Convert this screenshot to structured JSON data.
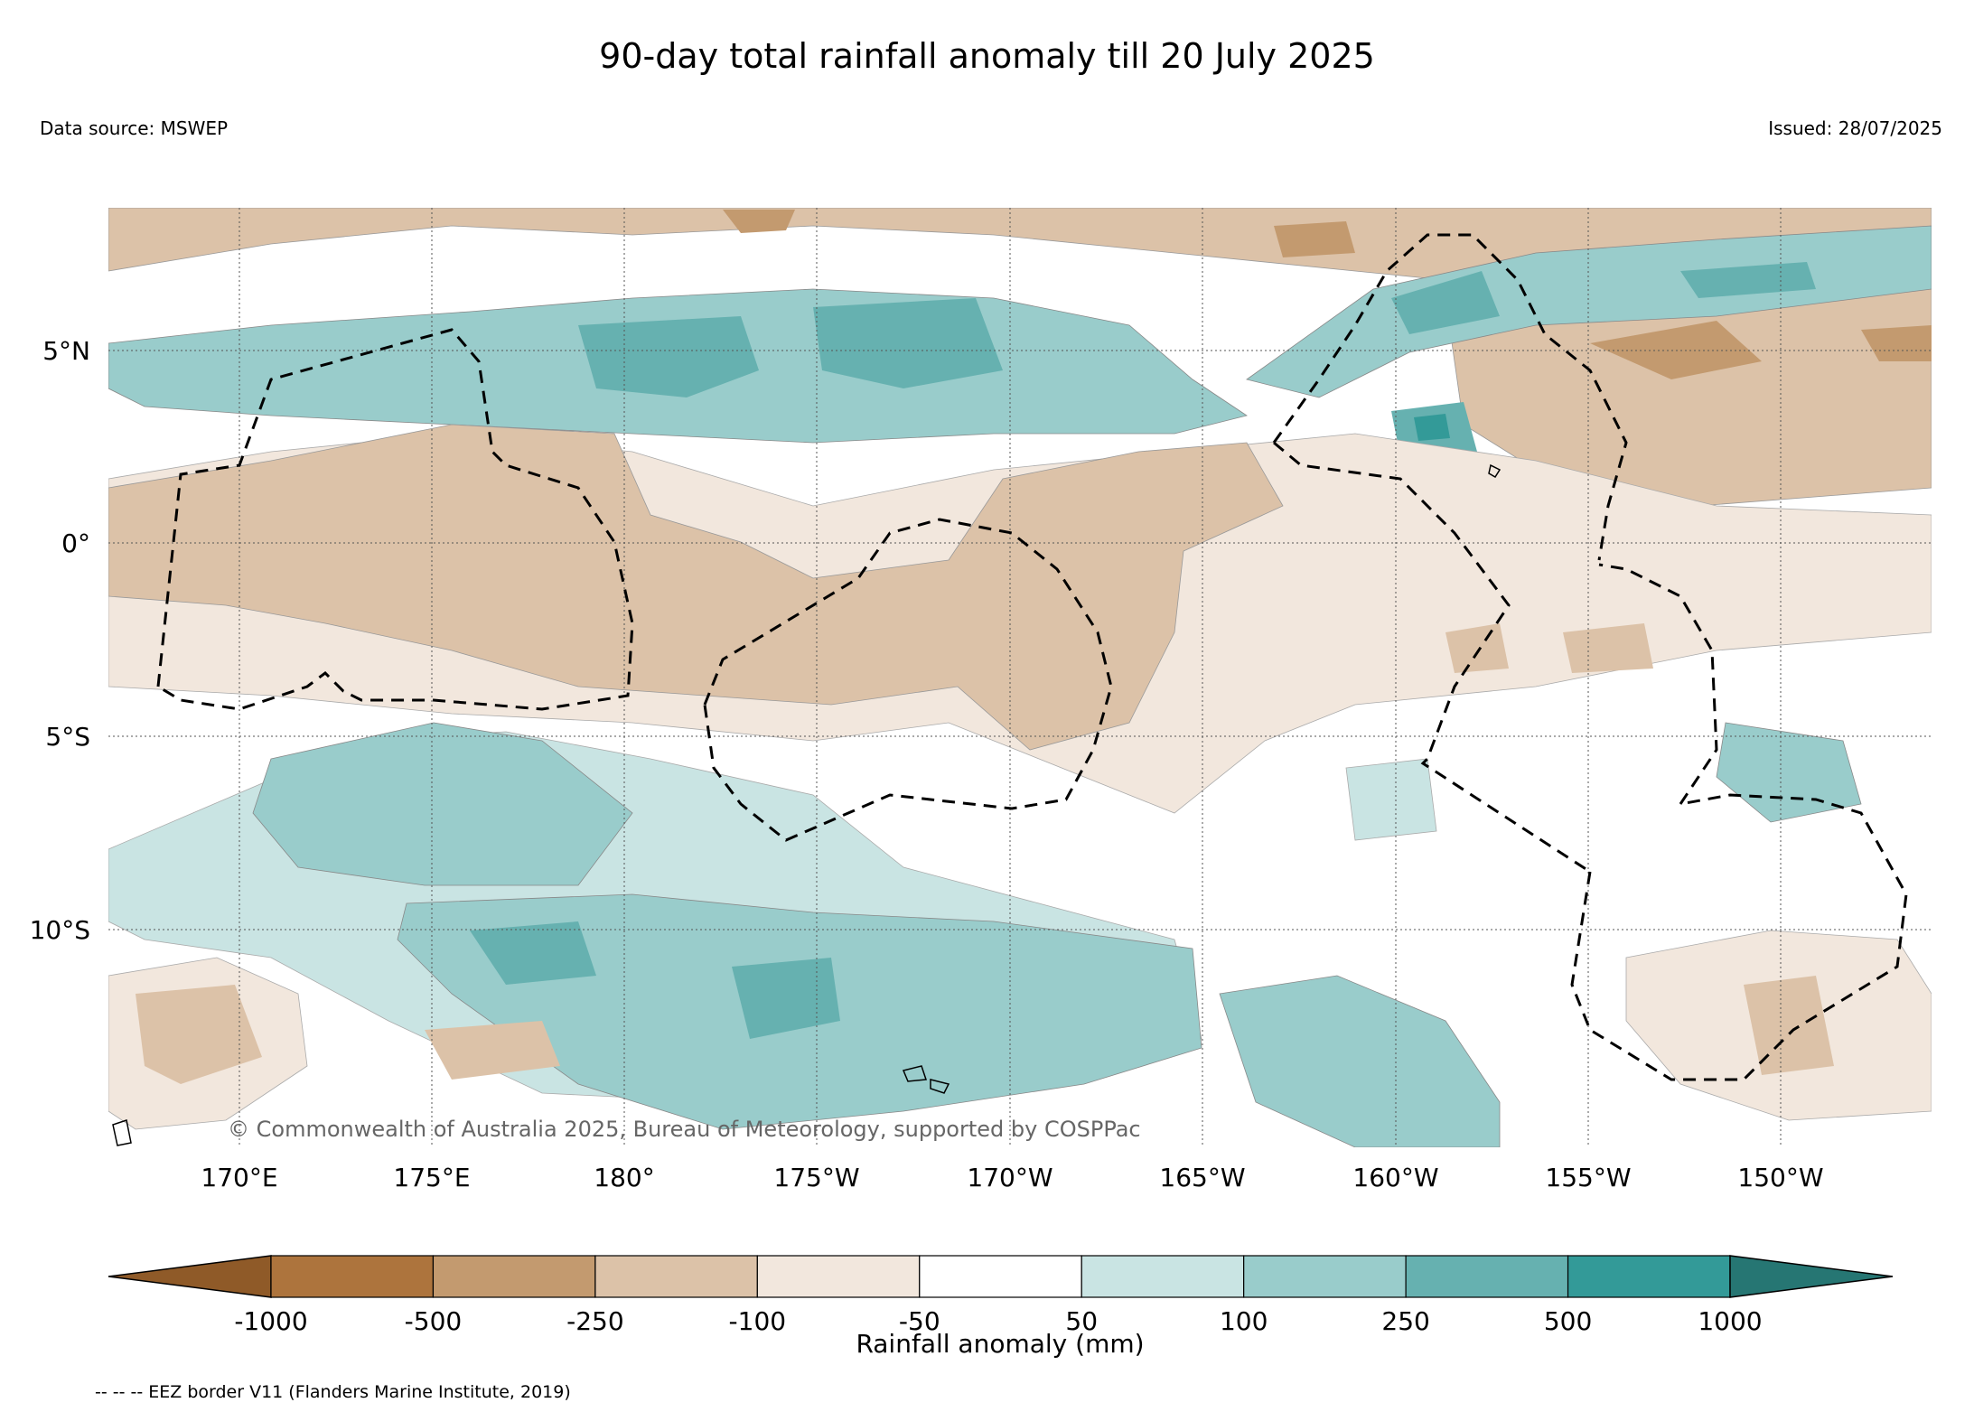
{
  "title": "90-day total rainfall anomaly till 20 July 2025",
  "data_source": "Data source: MSWEP",
  "issued": "Issued: 28/07/2025",
  "copyright": "© Commonwealth of Australia 2025, Bureau of Meteorology, supported by COSPPac",
  "footnote": "-- -- -- EEZ border V11 (Flanders Marine Institute, 2019)",
  "map": {
    "lon_range": [
      167,
      197
    ],
    "lat_range": [
      -15.5,
      8.8
    ],
    "lat_ticks": [
      {
        "label": "5°N",
        "value": 5
      },
      {
        "label": "0°",
        "value": 0
      },
      {
        "label": "5°S",
        "value": -5
      },
      {
        "label": "10°S",
        "value": -10
      }
    ],
    "lon_ticks": [
      {
        "label": "170°E",
        "value": 170
      },
      {
        "label": "175°E",
        "value": 175
      },
      {
        "label": "180°",
        "value": 180
      },
      {
        "label": "175°W",
        "value": 185
      },
      {
        "label": "170°W",
        "value": 190
      },
      {
        "label": "165°W",
        "value": 195
      },
      {
        "label": "160°W",
        "value": 200
      },
      {
        "label": "155°W",
        "value": 205
      },
      {
        "label": "150°W",
        "value": 210
      }
    ],
    "grid": true
  },
  "colorbar": {
    "label": "Rainfall anomaly (mm)",
    "ticks": [
      "-1000",
      "-500",
      "-250",
      "-100",
      "-50",
      "50",
      "100",
      "250",
      "500",
      "1000"
    ],
    "colors": {
      "under": "#8f5a28",
      "bins": [
        "#ad743d",
        "#c39a6f",
        "#dcc2a8",
        "#f2e7dd",
        "#ffffff",
        "#c9e4e3",
        "#99cccb",
        "#66b1b0",
        "#339a98"
      ],
      "over": "#267673"
    }
  }
}
